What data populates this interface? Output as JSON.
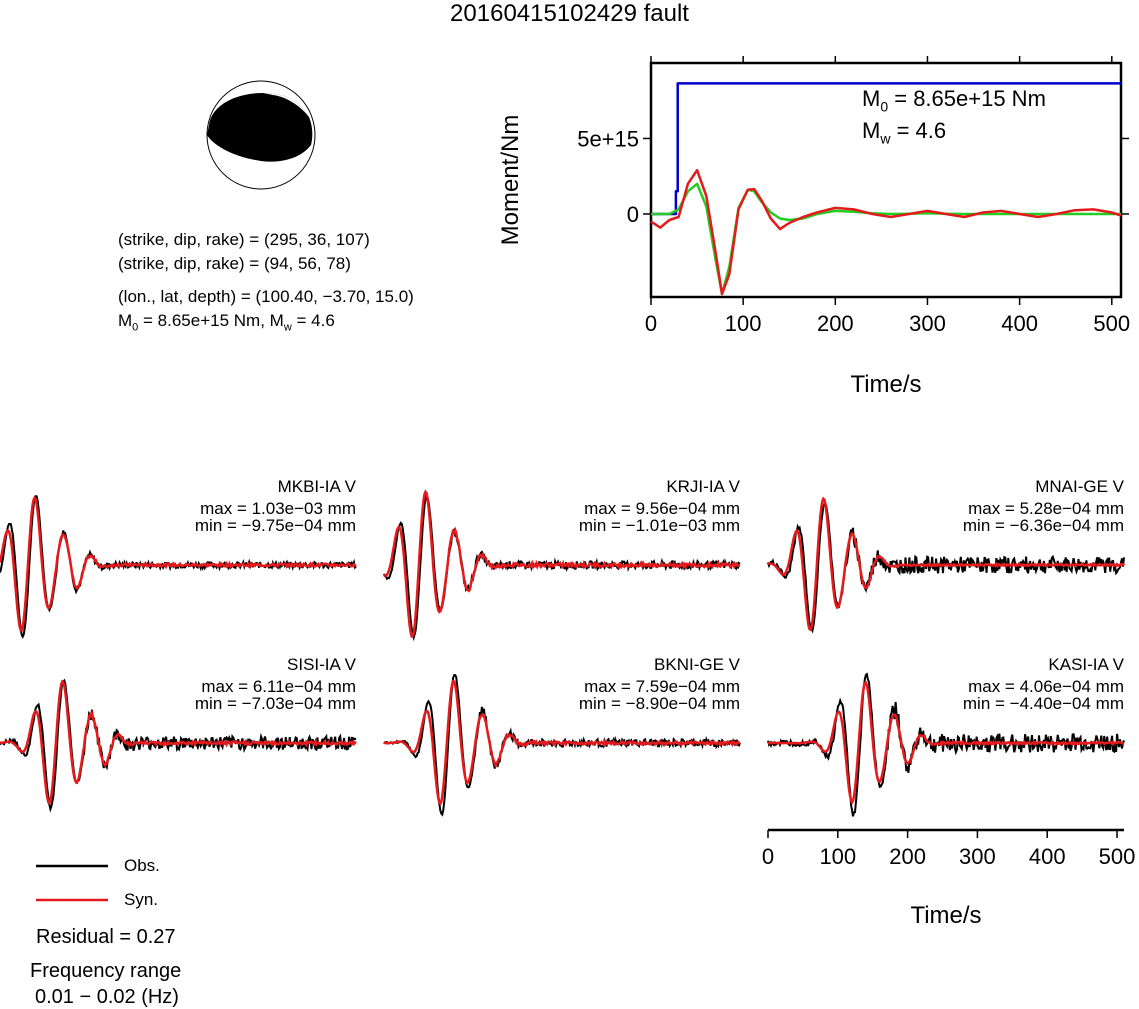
{
  "title": "20160415102429 fault",
  "solution": {
    "plane1": "(strike, dip, rake) = (295, 36, 107)",
    "plane2": "(strike, dip, rake) = (94, 56, 78)",
    "location": "(lon., lat, depth) = (100.40, −3.70, 15.0)",
    "moment_prefix": "M",
    "moment_sub": "0",
    "moment_rest": " = 8.65e+15 Nm, M",
    "mw_sub": "w",
    "mw_rest": " = 4.6"
  },
  "stf_annotation": {
    "m0_prefix": "M",
    "m0_sub": "0",
    "m0_rest": " = 8.65e+15 Nm",
    "mw_prefix": "M",
    "mw_sub": "w",
    "mw_rest": " = 4.6"
  },
  "legend": {
    "obs": "Obs.",
    "syn": "Syn.",
    "residual": "Residual = 0.27",
    "freq_title": "Frequency range",
    "freq_value": "0.01 − 0.02 (Hz)"
  },
  "colors": {
    "observed": "#000000",
    "synthetic": "#e41a1c",
    "moment": "#0000cc",
    "green": "#22cc22"
  },
  "chart_data": [
    {
      "type": "line",
      "ylabel": "Moment/Nm",
      "xlabel": "Time/s",
      "xlim": [
        0,
        510
      ],
      "xticks": [
        0,
        100,
        200,
        300,
        400,
        500
      ],
      "ylim": [
        -5500000000000000.0,
        1e+16
      ],
      "yticks": [
        0,
        5000000000000000.0
      ],
      "ytick_labels": [
        "0",
        "5e+15"
      ],
      "series": [
        {
          "x": [
            0,
            27,
            27,
            29,
            29,
            510
          ],
          "y": [
            0,
            0,
            1500000000000000.0,
            1500000000000000.0,
            8650000000000000.0,
            8650000000000000.0
          ]
        },
        {
          "x": [
            0,
            10,
            20,
            30,
            40,
            50,
            60,
            70,
            77,
            85,
            95,
            105,
            112,
            120,
            130,
            140,
            150,
            165,
            180,
            200,
            220,
            240,
            260,
            280,
            300,
            320,
            340,
            360,
            380,
            400,
            420,
            440,
            460,
            480,
            500,
            510
          ],
          "y": [
            0,
            0,
            0,
            300000000000000.0,
            1500000000000000.0,
            2000000000000000.0,
            500000000000000.0,
            -3000000000000000.0,
            -5300000000000000.0,
            -3500000000000000.0,
            400000000000000.0,
            1600000000000000.0,
            1500000000000000.0,
            800000000000000.0,
            100000000000000.0,
            -300000000000000.0,
            -400000000000000.0,
            -300000000000000.0,
            0.0,
            200000000000000.0,
            150000000000000.0,
            50000000000000.0,
            0.0,
            20000000000000.0,
            50000000000000.0,
            20000000000000.0,
            0.0,
            0.0,
            0.0,
            0.0,
            0.0,
            0.0,
            0.0,
            0.0,
            0.0,
            0.0
          ]
        },
        {
          "x": [
            0,
            10,
            20,
            30,
            40,
            50,
            60,
            70,
            77,
            85,
            95,
            105,
            112,
            120,
            130,
            140,
            150,
            165,
            180,
            200,
            220,
            240,
            260,
            280,
            300,
            320,
            340,
            360,
            380,
            400,
            420,
            440,
            460,
            480,
            500,
            510
          ],
          "y": [
            -500000000000000.0,
            -900000000000000.0,
            -400000000000000.0,
            -200000000000000.0,
            2000000000000000.0,
            2900000000000000.0,
            1200000000000000.0,
            -2500000000000000.0,
            -5300000000000000.0,
            -4000000000000000.0,
            300000000000000.0,
            1600000000000000.0,
            1650000000000000.0,
            900000000000000.0,
            -300000000000000.0,
            -1000000000000000.0,
            -600000000000000.0,
            -200000000000000.0,
            100000000000000.0,
            400000000000000.0,
            300000000000000.0,
            0.0,
            -200000000000000.0,
            0.0,
            200000000000000.0,
            0.0,
            -200000000000000.0,
            100000000000000.0,
            200000000000000.0,
            0.0,
            -200000000000000.0,
            0.0,
            250000000000000.0,
            300000000000000.0,
            100000000000000.0,
            -100000000000000.0
          ]
        }
      ]
    },
    {
      "type": "line",
      "xlabel": "Time/s",
      "xlim": [
        0,
        510
      ],
      "xticks": [
        0,
        100,
        200,
        300,
        400,
        500
      ],
      "panels": [
        {
          "station": "MKBI-IA V",
          "max": "max = 1.03e−03 mm",
          "min": "min = −9.75e−04 mm",
          "first_peak": 40,
          "amp": 1.0,
          "obs_late": 0.08,
          "syn_late": 0.06
        },
        {
          "station": "KRJI-IA V",
          "max": "max = 9.56e−04 mm",
          "min": "min = −1.01e−03 mm",
          "first_peak": 50,
          "amp": 1.0,
          "obs_late": 0.1,
          "syn_late": 0.08
        },
        {
          "station": "MNAI-GE V",
          "max": "max = 5.28e−04 mm",
          "min": "min = −6.36e−04 mm",
          "first_peak": 70,
          "amp": 0.9,
          "obs_late": 0.25,
          "syn_late": 0.04
        },
        {
          "station": "SISI-IA V",
          "max": "max = 6.11e−04 mm",
          "min": "min = −7.03e−04 mm",
          "first_peak": 80,
          "amp": 0.9,
          "obs_late": 0.2,
          "syn_late": 0.08
        },
        {
          "station": "BKNI-GE V",
          "max": "max = 7.59e−04 mm",
          "min": "min = −8.90e−04 mm",
          "first_peak": 90,
          "amp": 1.0,
          "obs_late": 0.1,
          "syn_late": 0.06
        },
        {
          "station": "KASI-IA V",
          "max": "max = 4.06e−04 mm",
          "min": "min = −4.40e−04 mm",
          "first_peak": 130,
          "amp": 1.0,
          "obs_late": 0.25,
          "syn_late": 0.05
        }
      ]
    }
  ]
}
